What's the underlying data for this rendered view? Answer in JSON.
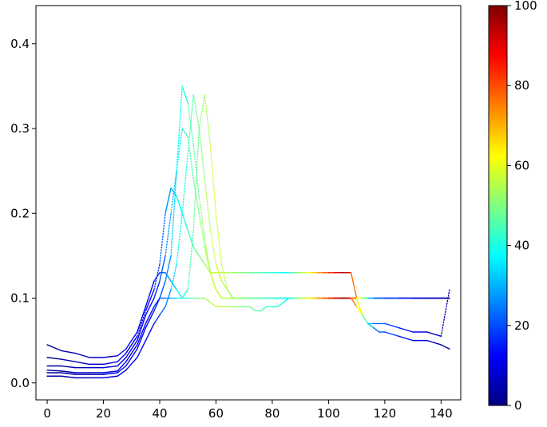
{
  "chart_data": {
    "type": "line",
    "title": "",
    "xlabel": "",
    "ylabel": "",
    "xlim": [
      -4,
      147
    ],
    "ylim": [
      -0.02,
      0.445
    ],
    "xticks": [
      0,
      20,
      40,
      60,
      80,
      100,
      120,
      140
    ],
    "xtick_labels": [
      "0",
      "20",
      "40",
      "60",
      "80",
      "100",
      "120",
      "140"
    ],
    "yticks": [
      0.0,
      0.1,
      0.2,
      0.3,
      0.4
    ],
    "ytick_labels": [
      "0.0",
      "0.1",
      "0.2",
      "0.3",
      "0.4"
    ],
    "grid": false,
    "legend": "none",
    "line_style": "solid in flat regions, dotted where values change sharply",
    "colormap": {
      "name": "jet",
      "min": 0,
      "max": 100,
      "ticks": [
        0,
        20,
        40,
        60,
        80,
        100
      ],
      "tick_labels": [
        "0",
        "20",
        "40",
        "60",
        "80",
        "100"
      ],
      "placement": "right",
      "colors": [
        "#00007f",
        "#0000ff",
        "#007fff",
        "#00ffff",
        "#7fff7f",
        "#ffff00",
        "#ff7f00",
        "#ff0000",
        "#7f0000"
      ]
    },
    "series_x": [
      0,
      5,
      10,
      15,
      20,
      25,
      28,
      32,
      35,
      38,
      40,
      42,
      44,
      46,
      48,
      50,
      52,
      54,
      56,
      58,
      60,
      62,
      64,
      66,
      68,
      70,
      72,
      74,
      76,
      78,
      80,
      82,
      84,
      86,
      88,
      90,
      92,
      94,
      96,
      98,
      100,
      102,
      104,
      106,
      108,
      110,
      112,
      114,
      116,
      118,
      120,
      125,
      130,
      135,
      140,
      143
    ],
    "series": [
      {
        "values": [
          0.045,
          0.038,
          0.035,
          0.03,
          0.03,
          0.032,
          0.04,
          0.06,
          0.09,
          0.12,
          0.13,
          0.13,
          0.12,
          0.11,
          0.1,
          0.1,
          0.1,
          0.1,
          0.1,
          0.095,
          0.09,
          0.09,
          0.09,
          0.09,
          0.09,
          0.09,
          0.09,
          0.085,
          0.085,
          0.09,
          0.09,
          0.09,
          0.095,
          0.1,
          0.1,
          0.1,
          0.1,
          0.1,
          0.1,
          0.1,
          0.1,
          0.1,
          0.1,
          0.1,
          0.1,
          0.09,
          0.08,
          0.07,
          0.07,
          0.07,
          0.07,
          0.065,
          0.06,
          0.06,
          0.055,
          0.11
        ]
      },
      {
        "values": [
          0.03,
          0.028,
          0.025,
          0.022,
          0.022,
          0.025,
          0.035,
          0.055,
          0.085,
          0.11,
          0.14,
          0.2,
          0.23,
          0.22,
          0.2,
          0.18,
          0.16,
          0.15,
          0.14,
          0.13,
          0.13,
          0.13,
          0.13,
          0.13,
          0.13,
          0.13,
          0.13,
          0.13,
          0.13,
          0.13,
          0.13,
          0.13,
          0.13,
          0.13,
          0.13,
          0.13,
          0.13,
          0.13,
          0.13,
          0.13,
          0.13,
          0.13,
          0.13,
          0.13,
          0.13,
          0.1,
          0.08,
          0.07,
          0.065,
          0.06,
          0.06,
          0.055,
          0.05,
          0.05,
          0.045,
          0.04
        ]
      },
      {
        "values": [
          0.02,
          0.02,
          0.018,
          0.018,
          0.018,
          0.02,
          0.03,
          0.05,
          0.08,
          0.1,
          0.12,
          0.15,
          0.2,
          0.25,
          0.3,
          0.29,
          0.24,
          0.2,
          0.16,
          0.13,
          0.11,
          0.1,
          0.1,
          0.1,
          0.1,
          0.1,
          0.1,
          0.1,
          0.1,
          0.1,
          0.1,
          0.1,
          0.1,
          0.1,
          0.1,
          0.1,
          0.1,
          0.1,
          0.1,
          0.1,
          0.1,
          0.1,
          0.1,
          0.1,
          0.1,
          0.1,
          0.1,
          0.1,
          0.1,
          0.1,
          0.1,
          0.1,
          0.1,
          0.1,
          0.1,
          0.1
        ]
      },
      {
        "values": [
          0.012,
          0.012,
          0.01,
          0.01,
          0.01,
          0.012,
          0.02,
          0.04,
          0.065,
          0.085,
          0.1,
          0.12,
          0.15,
          0.25,
          0.35,
          0.33,
          0.28,
          0.22,
          0.17,
          0.13,
          0.11,
          0.1,
          0.1,
          0.1,
          0.1,
          0.1,
          0.1,
          0.1,
          0.1,
          0.1,
          0.1,
          0.1,
          0.1,
          0.1,
          0.1,
          0.1,
          0.1,
          0.1,
          0.1,
          0.1,
          0.1,
          0.1,
          0.1,
          0.1,
          0.1,
          0.1,
          0.1,
          0.1,
          0.1,
          0.1,
          0.1,
          0.1,
          0.1,
          0.1,
          0.1,
          0.1
        ]
      },
      {
        "values": [
          0.008,
          0.008,
          0.006,
          0.006,
          0.006,
          0.008,
          0.015,
          0.03,
          0.05,
          0.07,
          0.08,
          0.09,
          0.11,
          0.14,
          0.2,
          0.27,
          0.34,
          0.3,
          0.24,
          0.18,
          0.14,
          0.12,
          0.11,
          0.1,
          0.1,
          0.1,
          0.1,
          0.1,
          0.1,
          0.1,
          0.1,
          0.1,
          0.1,
          0.1,
          0.1,
          0.1,
          0.1,
          0.1,
          0.1,
          0.1,
          0.1,
          0.1,
          0.1,
          0.1,
          0.1,
          0.1,
          0.1,
          0.1,
          0.1,
          0.1,
          0.1,
          0.1,
          0.1,
          0.1,
          0.1,
          0.1
        ]
      },
      {
        "values": [
          0.015,
          0.014,
          0.012,
          0.012,
          0.012,
          0.014,
          0.025,
          0.045,
          0.07,
          0.09,
          0.1,
          0.1,
          0.1,
          0.1,
          0.1,
          0.11,
          0.18,
          0.3,
          0.34,
          0.28,
          0.2,
          0.14,
          0.11,
          0.1,
          0.1,
          0.1,
          0.1,
          0.1,
          0.1,
          0.1,
          0.1,
          0.1,
          0.1,
          0.1,
          0.1,
          0.1,
          0.1,
          0.1,
          0.1,
          0.1,
          0.1,
          0.1,
          0.1,
          0.1,
          0.1,
          0.1,
          0.1,
          0.1,
          0.1,
          0.1,
          0.1,
          0.1,
          0.1,
          0.1,
          0.1,
          0.1
        ]
      }
    ]
  }
}
